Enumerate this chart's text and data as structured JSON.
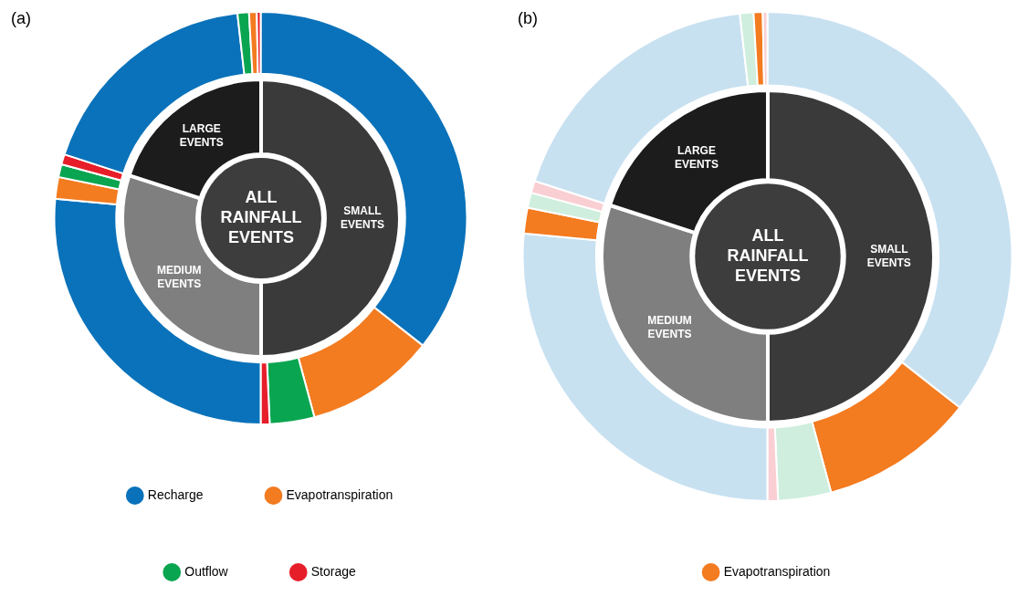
{
  "chart_data": [
    {
      "type": "donut",
      "title": "(a)",
      "legend": "bottom",
      "categories": [
        "Recharge",
        "Evapotranspiration",
        "Outflow",
        "Storage",
        null,
        null,
        null,
        null,
        null,
        null,
        null,
        null
      ],
      "values": [
        35.6,
        10.2,
        3.5,
        0.7,
        26.5,
        1.7,
        1.0,
        0.8,
        18.2,
        0.9,
        0.6,
        0.3
      ],
      "colors": [
        "#0a72ba",
        "#f37b20",
        "#0aa550",
        "#e61e2a",
        "#0a72ba",
        "#f37b20",
        "#0aa550",
        "#e61e2a",
        "#0a72ba",
        "#0aa550",
        "#f37b20",
        "#e61e2a"
      ]
    },
    {
      "type": "donut",
      "annotations": [
        "ALL RAINFALL EVENTS"
      ],
      "categories": [
        "SMALL EVENTS",
        "MEDIUM EVENTS",
        "LARGE EVENTS"
      ],
      "values": [
        50,
        30,
        20
      ],
      "colors": [
        "#3a3a3a",
        "#7f7f7f",
        "#1c1c1c"
      ]
    },
    {
      "type": "donut",
      "title": "(b)",
      "legend": "bottom",
      "categories": [
        null,
        "Evapotranspiration",
        null,
        null,
        null,
        null,
        null,
        null,
        null,
        null,
        null,
        null
      ],
      "values": [
        35.6,
        10.2,
        3.5,
        0.7,
        26.5,
        1.7,
        1.0,
        0.8,
        18.2,
        0.9,
        0.6,
        0.3
      ],
      "colors": [
        "#c8e1f1",
        "#f37b20",
        "#cfeedd",
        "#f9cfd3",
        "#c8e1f1",
        "#f37b20",
        "#cfeedd",
        "#f9cfd3",
        "#c8e1f1",
        "#cfeedd",
        "#f37b20",
        "#f9cfd3"
      ]
    },
    {
      "type": "donut",
      "annotations": [
        "ALL RAINFALL EVENTS"
      ],
      "categories": [
        "SMALL EVENTS",
        "MEDIUM EVENTS",
        "LARGE EVENTS"
      ],
      "values": [
        50,
        30,
        20
      ],
      "colors": [
        "#3a3a3a",
        "#7f7f7f",
        "#1c1c1c"
      ]
    }
  ]
}
